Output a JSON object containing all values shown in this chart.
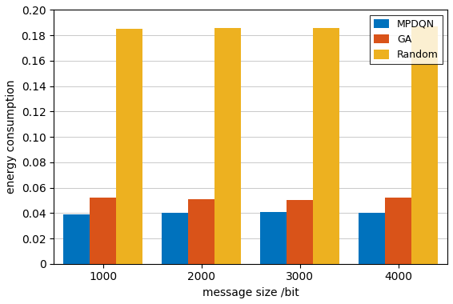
{
  "categories": [
    "1000",
    "2000",
    "3000",
    "4000"
  ],
  "mpdqn": [
    0.039,
    0.04,
    0.041,
    0.04
  ],
  "ga": [
    0.052,
    0.051,
    0.05,
    0.052
  ],
  "random": [
    0.185,
    0.186,
    0.186,
    0.187
  ],
  "colors": {
    "MPDQN": "#0072BD",
    "GA": "#D95319",
    "Random": "#EDB120"
  },
  "legend_labels": [
    "MPDQN",
    "GA",
    "Random"
  ],
  "xlabel": "message size /bit",
  "ylabel": "energy consumption",
  "ylim": [
    0,
    0.2
  ],
  "yticks": [
    0,
    0.02,
    0.04,
    0.06,
    0.08,
    0.1,
    0.12,
    0.14,
    0.16,
    0.18,
    0.2
  ],
  "bar_width": 0.27,
  "fig_width": 5.66,
  "fig_height": 3.8,
  "dpi": 100
}
